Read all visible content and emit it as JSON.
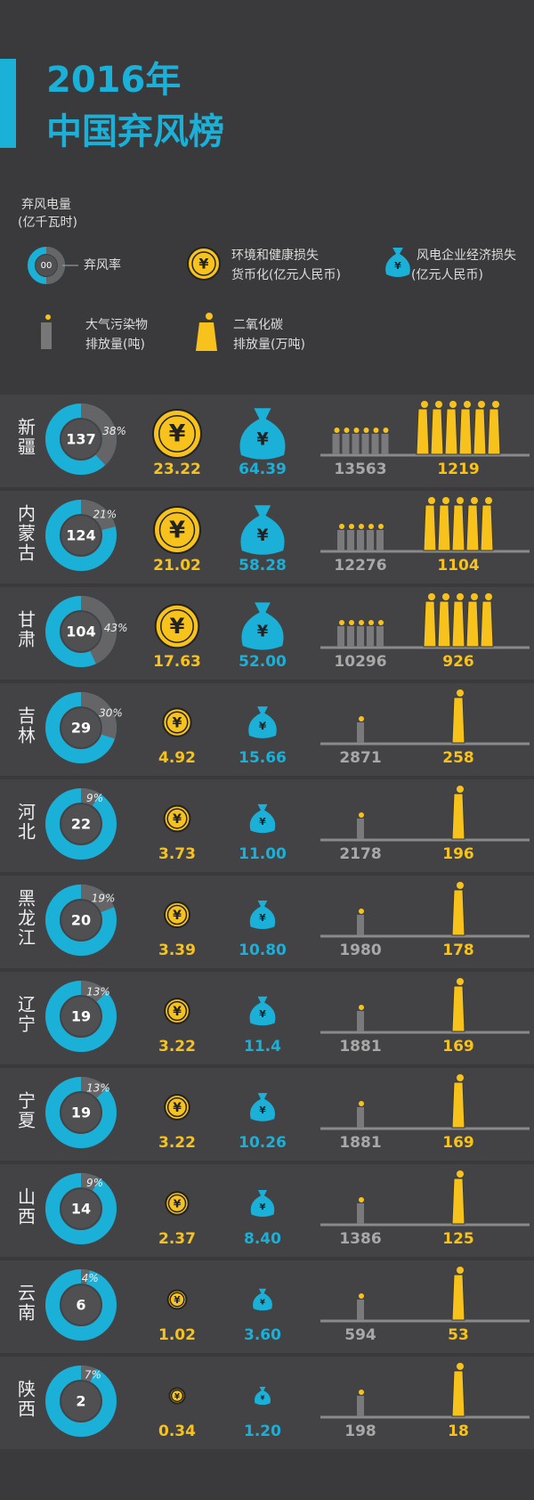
{
  "header": {
    "title_line1": "2016年",
    "title_line2": "中国弃风榜"
  },
  "legend": {
    "curtailment": "弃风电量",
    "curtailment_unit": "(亿千瓦时)",
    "sample": "00",
    "rate": "弃风率",
    "env_loss": "环境和健康损失",
    "env_loss_unit": "货币化(亿元人民币)",
    "econ_loss": "风电企业经济损失",
    "econ_loss_unit": "(亿元人民币)",
    "pollutant": "大气污染物",
    "pollutant_unit": "排放量(吨)",
    "co2": "二氧化碳",
    "co2_unit": "排放量(万吨)"
  },
  "rows": [
    {
      "province": "新疆",
      "curtailment": "137",
      "rate": "38%",
      "env_loss": "23.22",
      "econ_loss": "64.39",
      "pollutants": "13563",
      "co2": "1219"
    },
    {
      "province": "内蒙古",
      "curtailment": "124",
      "rate": "21%",
      "env_loss": "21.02",
      "econ_loss": "58.28",
      "pollutants": "12276",
      "co2": "1104"
    },
    {
      "province": "甘肃",
      "curtailment": "104",
      "rate": "43%",
      "env_loss": "17.63",
      "econ_loss": "52.00",
      "pollutants": "10296",
      "co2": "926"
    },
    {
      "province": "吉林",
      "curtailment": "29",
      "rate": "30%",
      "env_loss": "4.92",
      "econ_loss": "15.66",
      "pollutants": "2871",
      "co2": "258"
    },
    {
      "province": "河北",
      "curtailment": "22",
      "rate": "9%",
      "env_loss": "3.73",
      "econ_loss": "11.00",
      "pollutants": "2178",
      "co2": "196"
    },
    {
      "province": "黑龙江",
      "curtailment": "20",
      "rate": "19%",
      "env_loss": "3.39",
      "econ_loss": "10.80",
      "pollutants": "1980",
      "co2": "178"
    },
    {
      "province": "辽宁",
      "curtailment": "19",
      "rate": "13%",
      "env_loss": "3.22",
      "econ_loss": "11.4",
      "pollutants": "1881",
      "co2": "169"
    },
    {
      "province": "宁夏",
      "curtailment": "19",
      "rate": "13%",
      "env_loss": "3.22",
      "econ_loss": "10.26",
      "pollutants": "1881",
      "co2": "169"
    },
    {
      "province": "山西",
      "curtailment": "14",
      "rate": "9%",
      "env_loss": "2.37",
      "econ_loss": "8.40",
      "pollutants": "1386",
      "co2": "125"
    },
    {
      "province": "云南",
      "curtailment": "6",
      "rate": "4%",
      "env_loss": "1.02",
      "econ_loss": "3.60",
      "pollutants": "594",
      "co2": "53"
    },
    {
      "province": "陕西",
      "curtailment": "2",
      "rate": "7%",
      "env_loss": "0.34",
      "econ_loss": "1.20",
      "pollutants": "198",
      "co2": "18"
    }
  ]
}
